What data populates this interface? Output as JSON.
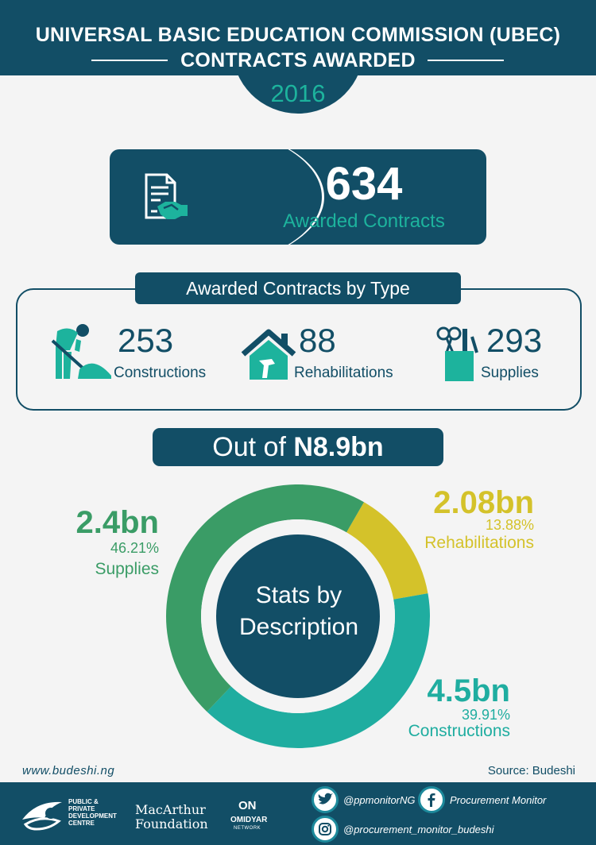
{
  "header": {
    "title_line1": "UNIVERSAL BASIC EDUCATION COMMISSION (UBEC)",
    "title_line2": "CONTRACTS AWARDED",
    "year": "2016"
  },
  "total": {
    "count": "634",
    "label": "Awarded Contracts"
  },
  "by_type": {
    "heading": "Awarded Contracts by Type",
    "items": [
      {
        "count": "253",
        "label": "Constructions",
        "icon": "worker-shovel-icon"
      },
      {
        "count": "88",
        "label": "Rehabilitations",
        "icon": "house-hammer-icon"
      },
      {
        "count": "293",
        "label": "Supplies",
        "icon": "stationery-cup-icon"
      }
    ]
  },
  "out_of": {
    "prefix": "Out of",
    "amount": "N8.9bn"
  },
  "chart_data": {
    "type": "pie",
    "variant": "donut",
    "center_label_line1": "Stats by",
    "center_label_line2": "Description",
    "slices": [
      {
        "name": "Supplies",
        "amount": "2.4bn",
        "percent": 46.21,
        "percent_label": "46.21%",
        "color": "#3a9c66"
      },
      {
        "name": "Rehabilitations",
        "amount": "2.08bn",
        "percent": 13.88,
        "percent_label": "13.88%",
        "color": "#d4c22a"
      },
      {
        "name": "Constructions",
        "amount": "4.5bn",
        "percent": 39.91,
        "percent_label": "39.91%",
        "color": "#1fada0"
      }
    ],
    "center_color": "#124e66"
  },
  "footer": {
    "website": "www.budeshi.ng",
    "source": "Source: Budeshi",
    "partners": {
      "ppdc": "PUBLIC & PRIVATE DEVELOPMENT CENTRE",
      "macarthur_line1": "MacArthur",
      "macarthur_line2": "Foundation",
      "omidyar_mark": "ON",
      "omidyar_name": "OMIDYAR",
      "omidyar_sub": "NETWORK"
    },
    "social": {
      "twitter": "@ppmonitorNG",
      "facebook": "Procurement Monitor",
      "instagram": "@procurement_monitor_budeshi"
    }
  },
  "colors": {
    "navy": "#124e66",
    "teal": "#1db39d",
    "green": "#3a9c66",
    "yellow": "#d4c22a"
  }
}
